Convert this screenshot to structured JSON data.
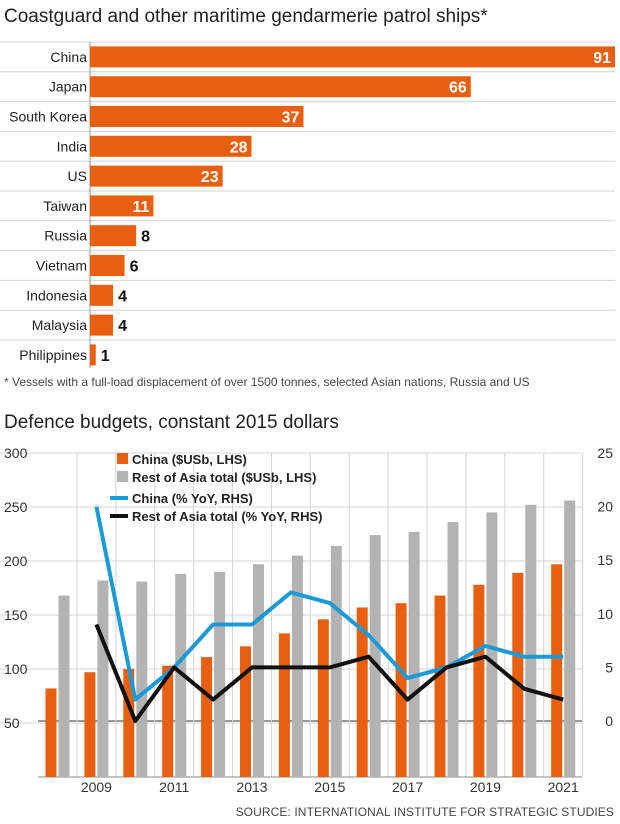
{
  "colors": {
    "orange": "#e8600f",
    "grey": "#b3b3b3",
    "blue": "#1b9ad6",
    "black": "#111111",
    "grid": "#d4d4d4"
  },
  "ships": {
    "title": "Coastguard and other maritime gendarmerie patrol ships*",
    "footnote": "* Vessels with a full-load displacement of over 1500 tonnes, selected Asian nations, Russia and US"
  },
  "budgets": {
    "title": "Defence budgets, constant 2015 dollars",
    "source": "SOURCE: INTERNATIONAL INSTITUTE FOR STRATEGIC STUDIES"
  },
  "chart_data": [
    {
      "type": "bar",
      "orientation": "horizontal",
      "title": "Coastguard and other maritime gendarmerie patrol ships*",
      "categories": [
        "China",
        "Japan",
        "South Korea",
        "India",
        "US",
        "Taiwan",
        "Russia",
        "Vietnam",
        "Indonesia",
        "Malaysia",
        "Philippines"
      ],
      "values": [
        91,
        66,
        37,
        28,
        23,
        11,
        8,
        6,
        4,
        4,
        1
      ],
      "xlim": [
        0,
        91
      ],
      "grid": true
    },
    {
      "type": "bar",
      "title": "Defence budgets, constant 2015 dollars",
      "x": [
        2008,
        2009,
        2010,
        2011,
        2012,
        2013,
        2014,
        2015,
        2016,
        2017,
        2018,
        2019,
        2020,
        2021
      ],
      "x_tick_labels": [
        "2009",
        "2011",
        "2013",
        "2015",
        "2017",
        "2019",
        "2021"
      ],
      "x_ticks": [
        2009,
        2011,
        2013,
        2015,
        2017,
        2019,
        2021
      ],
      "ylim_left": [
        0,
        300
      ],
      "y_ticks_left": [
        50,
        100,
        150,
        200,
        250,
        300
      ],
      "ylim_right": [
        -5,
        25
      ],
      "y_ticks_right": [
        0,
        5,
        10,
        15,
        20,
        25
      ],
      "series": [
        {
          "name": "China ($USb, LHS)",
          "kind": "bar",
          "axis": "left",
          "values": [
            82,
            97,
            100,
            103,
            111,
            121,
            133,
            146,
            157,
            161,
            168,
            178,
            189,
            197
          ]
        },
        {
          "name": "Rest of Asia total ($USb, LHS)",
          "kind": "bar",
          "axis": "left",
          "values": [
            168,
            182,
            181,
            188,
            190,
            197,
            205,
            214,
            224,
            227,
            236,
            245,
            252,
            256
          ]
        },
        {
          "name": "China (% YoY, RHS)",
          "kind": "line",
          "axis": "right",
          "values": [
            null,
            20,
            2,
            5,
            9,
            9,
            12,
            11,
            8,
            4,
            5,
            7,
            6,
            6
          ]
        },
        {
          "name": "Rest of Asia total (% YoY, RHS)",
          "kind": "line",
          "axis": "right",
          "values": [
            null,
            9,
            0,
            5,
            2,
            5,
            5,
            5,
            6,
            2,
            5,
            6,
            3,
            2
          ]
        }
      ],
      "legend": "top-left",
      "grid": true
    }
  ]
}
